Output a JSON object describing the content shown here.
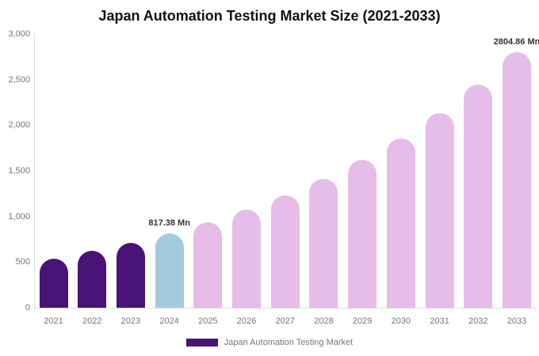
{
  "chart_data": {
    "type": "bar",
    "title": "Japan Automation Testing Market Size (2021-2033)",
    "unit": "Mn",
    "categories": [
      "2021",
      "2022",
      "2023",
      "2024",
      "2025",
      "2026",
      "2027",
      "2028",
      "2029",
      "2030",
      "2031",
      "2032",
      "2033"
    ],
    "series": [
      {
        "name": "Japan Automation Testing Market",
        "values": [
          540,
          620,
          713,
          817.38,
          937,
          1075,
          1233,
          1414,
          1621,
          1859,
          2132,
          2445,
          2804.86
        ]
      }
    ],
    "bar_roles": [
      "historical",
      "historical",
      "historical",
      "current",
      "forecast",
      "forecast",
      "forecast",
      "forecast",
      "forecast",
      "forecast",
      "forecast",
      "forecast",
      "forecast"
    ],
    "palette": {
      "historical": "#4A1377",
      "current": "#A3CBDF",
      "forecast": "#E6BCE8"
    },
    "data_labels": [
      {
        "index": 3,
        "text": "817.38 Mn"
      },
      {
        "index": 12,
        "text": "2804.86 Mn"
      }
    ],
    "xlabel": "",
    "ylabel": "",
    "ylim": [
      0,
      3000
    ],
    "yticks": [
      {
        "value": 0,
        "label": "0"
      },
      {
        "value": 500,
        "label": "500"
      },
      {
        "value": 1000,
        "label": "1,000"
      },
      {
        "value": 1500,
        "label": "1,500"
      },
      {
        "value": 2000,
        "label": "2,000"
      },
      {
        "value": 2500,
        "label": "2,500"
      },
      {
        "value": 3000,
        "label": "3,000"
      }
    ],
    "grid": false,
    "axis_color": "#DCDCDC",
    "tick_label_color": "#757575",
    "value_label_color": "#333333",
    "legend": {
      "position": "bottom",
      "items": [
        {
          "label": "Japan Automation Testing Market",
          "color": "#4A1377"
        }
      ]
    }
  }
}
